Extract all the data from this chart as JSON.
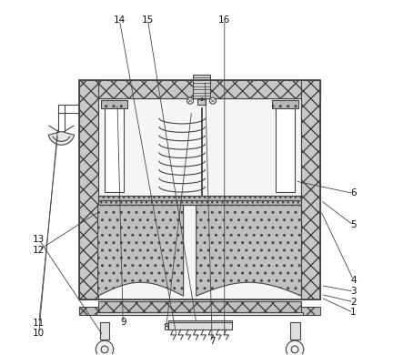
{
  "bg_color": "#ffffff",
  "line_color": "#444444",
  "fig_width": 4.43,
  "fig_height": 3.9,
  "dpi": 100,
  "ox": 0.155,
  "oy": 0.155,
  "ow": 0.68,
  "oh": 0.62,
  "wall": 0.052,
  "inner_fc": "#f5f5f5",
  "hatch_fc": "#c8c8c8",
  "dot_fc": "#c0c0c0",
  "leg_fc": "#e0e0e0",
  "panel_fc": "#eeeeee",
  "motor_fc": "#d0d0d0",
  "label_fontsize": 7.5,
  "label_color": "#111111",
  "lw": 0.8
}
